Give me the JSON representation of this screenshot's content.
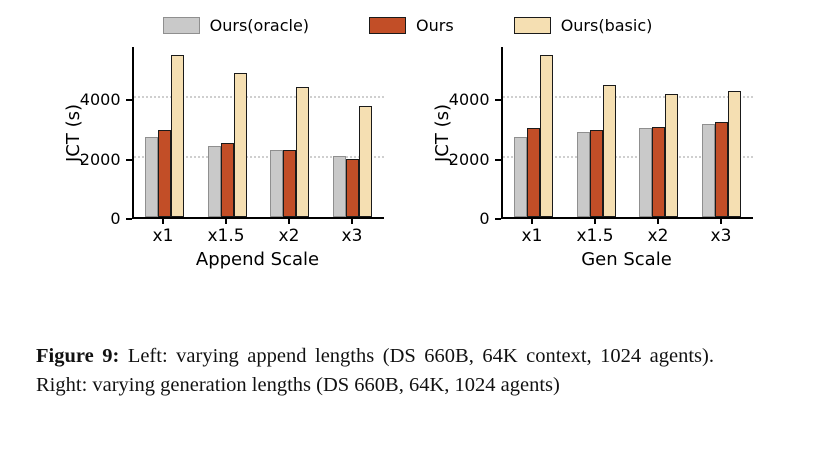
{
  "legend": [
    {
      "label": "Ours(oracle)",
      "color": "#c9c9c9",
      "edge": "#8f8f8f"
    },
    {
      "label": "Ours",
      "color": "#c24e27",
      "edge": "#1a1a1a"
    },
    {
      "label": "Ours(basic)",
      "color": "#f5dfb2",
      "edge": "#1a1a1a"
    }
  ],
  "chart_data": {
    "type": "bar",
    "legend_position": "top",
    "grid": "dotted horizontal gridlines at y ticks",
    "charts": [
      {
        "xlabel": "Append Scale",
        "ylabel": "JCT (s)",
        "categories": [
          "x1",
          "x1.5",
          "x2",
          "x3"
        ],
        "ylim": [
          0,
          5800
        ],
        "yticks": [
          0,
          2000,
          4000
        ],
        "series": [
          {
            "name": "Ours(oracle)",
            "values": [
              2700,
              2400,
              2250,
              2050
            ]
          },
          {
            "name": "Ours",
            "values": [
              2950,
              2500,
              2250,
              1950
            ]
          },
          {
            "name": "Ours(basic)",
            "values": [
              5450,
              4850,
              4400,
              3750
            ]
          }
        ]
      },
      {
        "xlabel": "Gen Scale",
        "ylabel": "JCT (s)",
        "categories": [
          "x1",
          "x1.5",
          "x2",
          "x3"
        ],
        "ylim": [
          0,
          5800
        ],
        "yticks": [
          0,
          2000,
          4000
        ],
        "series": [
          {
            "name": "Ours(oracle)",
            "values": [
              2700,
              2850,
              3000,
              3150
            ]
          },
          {
            "name": "Ours",
            "values": [
              3000,
              2950,
              3050,
              3200
            ]
          },
          {
            "name": "Ours(basic)",
            "values": [
              5450,
              4450,
              4150,
              4250
            ]
          }
        ]
      }
    ]
  },
  "caption": {
    "prefix": "Figure 9:",
    "text": "Left: varying append lengths (DS 660B, 64K context, 1024 agents). Right: varying generation lengths (DS 660B, 64K, 1024 agents)"
  }
}
